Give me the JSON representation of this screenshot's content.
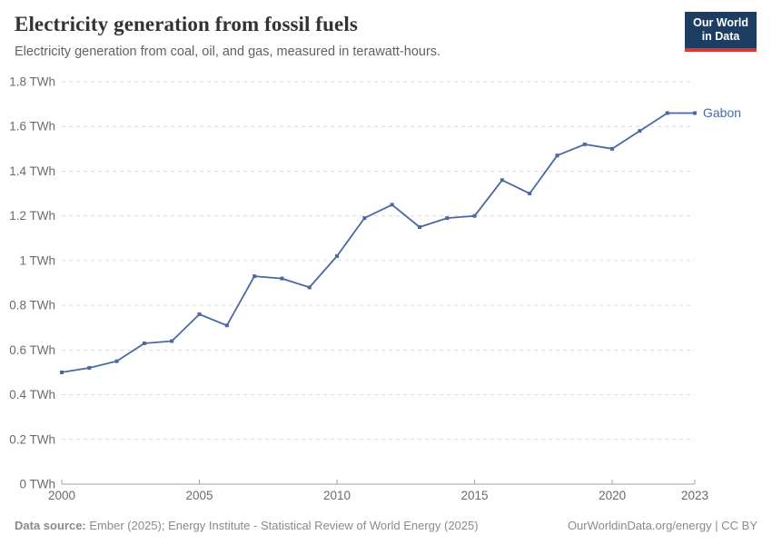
{
  "header": {
    "title": "Electricity generation from fossil fuels",
    "subtitle": "Electricity generation from coal, oil, and gas, measured in terawatt-hours.",
    "logo": {
      "line1": "Our World",
      "line2": "in Data"
    }
  },
  "chart_data": {
    "type": "line",
    "title": "Electricity generation from fossil fuels",
    "xlabel": "",
    "ylabel": "",
    "unit": "TWh",
    "xlim": [
      2000,
      2023
    ],
    "ylim": [
      0,
      1.8
    ],
    "grid": "horizontal-dashed",
    "legend_position": "end-of-line-label",
    "x_ticks": [
      2000,
      2005,
      2010,
      2015,
      2020,
      2023
    ],
    "y_ticks": [
      0,
      0.2,
      0.4,
      0.6,
      0.8,
      1.0,
      1.2,
      1.4,
      1.6,
      1.8
    ],
    "y_tick_labels": [
      "0 TWh",
      "0.2 TWh",
      "0.4 TWh",
      "0.6 TWh",
      "0.8 TWh",
      "1 TWh",
      "1.2 TWh",
      "1.4 TWh",
      "1.6 TWh",
      "1.8 TWh"
    ],
    "series": [
      {
        "name": "Gabon",
        "color": "#4a69a2",
        "x": [
          2000,
          2001,
          2002,
          2003,
          2004,
          2005,
          2006,
          2007,
          2008,
          2009,
          2010,
          2011,
          2012,
          2013,
          2014,
          2015,
          2016,
          2017,
          2018,
          2019,
          2020,
          2021,
          2022,
          2023
        ],
        "values": [
          0.5,
          0.52,
          0.55,
          0.63,
          0.64,
          0.76,
          0.71,
          0.93,
          0.92,
          0.88,
          1.02,
          1.19,
          1.25,
          1.15,
          1.19,
          1.2,
          1.36,
          1.3,
          1.47,
          1.52,
          1.5,
          1.58,
          1.66,
          1.66
        ]
      }
    ]
  },
  "footer": {
    "data_source_label": "Data source:",
    "data_source_text": " Ember (2025); Energy Institute - Statistical Review of World Energy (2025)",
    "credit": "OurWorldinData.org/energy | CC BY"
  },
  "colors": {
    "line": "#4a69a2",
    "grid": "#dcdcdc",
    "axis": "#a3a3a3",
    "tick_label": "#6b6b6b",
    "title": "#333333",
    "subtitle": "#616161",
    "footer": "#8a8a8a",
    "logo_bg": "#1d3d63",
    "logo_red": "#d93a34"
  }
}
